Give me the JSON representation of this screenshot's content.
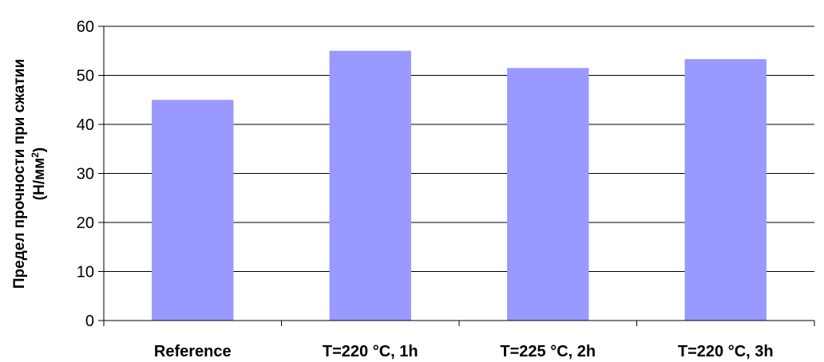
{
  "chart_data": {
    "type": "bar",
    "categories": [
      "Reference",
      "T=220 °C, 1h",
      "T=225 °C, 2h",
      "T=220 °C, 3h"
    ],
    "values": [
      45,
      55,
      51.5,
      53.3
    ],
    "ylabel_line1": "Предел прочности при сжатии",
    "ylabel_line2": "(Н/мм",
    "ylabel_sup": "2",
    "ylabel_end": ")",
    "ylim": [
      0,
      60
    ],
    "yticks": [
      0,
      10,
      20,
      30,
      40,
      50,
      60
    ],
    "grid": true,
    "bar_color": "#9999ff"
  }
}
